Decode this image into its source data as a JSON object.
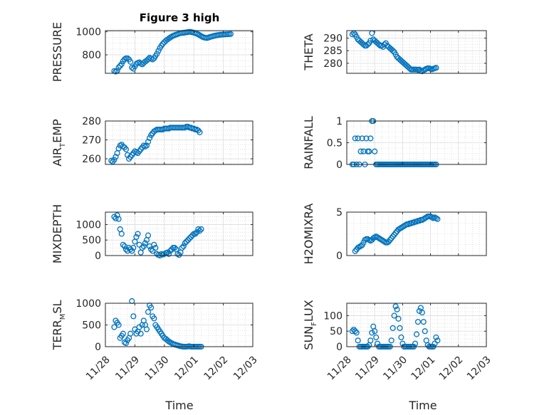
{
  "figure": {
    "title": "Figure 3 high",
    "x_axis_label": "Time",
    "x_tick_labels": [
      "11/28",
      "11/29",
      "11/30",
      "12/01",
      "12/02",
      "12/03"
    ],
    "marker_color": "#0072BD",
    "grid": true
  },
  "chart_data": [
    {
      "type": "scatter",
      "ylabel": "PRESSURE",
      "ylim": [
        640,
        1010
      ],
      "yticks": [
        800,
        1000
      ],
      "x": [
        0.3,
        0.35,
        0.4,
        0.45,
        0.5,
        0.55,
        0.6,
        0.65,
        0.7,
        0.75,
        0.8,
        0.85,
        0.9,
        0.95,
        1.0,
        1.05,
        1.1,
        1.15,
        1.2,
        1.25,
        1.3,
        1.35,
        1.4,
        1.45,
        1.5,
        1.55,
        1.6,
        1.65,
        1.7,
        1.75,
        1.8,
        1.85,
        1.9,
        1.95,
        2.0,
        2.05,
        2.1,
        2.15,
        2.2,
        2.25,
        2.3,
        2.35,
        2.4,
        2.45,
        2.5,
        2.55,
        2.6,
        2.65,
        2.7,
        2.75,
        2.8,
        2.85,
        2.9,
        2.95,
        3.0,
        3.05,
        3.1,
        3.15,
        3.2,
        3.25,
        3.3,
        3.35,
        3.4,
        3.45,
        3.5,
        3.55,
        3.6,
        3.65,
        3.7,
        3.75,
        3.8,
        3.85,
        3.9,
        3.95,
        4.0,
        4.05,
        4.1,
        4.15,
        4.2,
        4.25
      ],
      "y": [
        660,
        655,
        662,
        690,
        705,
        720,
        745,
        762,
        770,
        770,
        760,
        740,
        690,
        680,
        700,
        722,
        730,
        735,
        725,
        718,
        730,
        742,
        750,
        762,
        775,
        768,
        760,
        770,
        790,
        810,
        835,
        860,
        880,
        897,
        910,
        922,
        932,
        941,
        950,
        958,
        965,
        970,
        975,
        980,
        985,
        988,
        990,
        991,
        993,
        995,
        997,
        1000,
        998,
        995,
        992,
        988,
        983,
        978,
        970,
        962,
        955,
        950,
        948,
        946,
        950,
        955,
        958,
        962,
        965,
        968,
        970,
        972,
        974,
        975,
        976,
        977,
        978,
        979,
        980,
        981
      ]
    },
    {
      "type": "scatter",
      "ylabel": "THETA",
      "ylim": [
        276,
        293
      ],
      "yticks": [
        280,
        285,
        290
      ],
      "x": [
        0.2,
        0.25,
        0.3,
        0.35,
        0.4,
        0.45,
        0.5,
        0.55,
        0.6,
        0.65,
        0.7,
        0.75,
        0.8,
        0.85,
        0.9,
        0.95,
        1.0,
        1.05,
        1.1,
        1.15,
        1.2,
        1.25,
        1.3,
        1.35,
        1.4,
        1.45,
        1.5,
        1.55,
        1.6,
        1.65,
        1.7,
        1.75,
        1.8,
        1.85,
        1.9,
        1.95,
        2.0,
        2.05,
        2.1,
        2.15,
        2.2,
        2.25,
        2.3,
        2.35,
        2.4,
        2.45,
        2.5,
        2.55,
        2.6,
        2.65,
        2.7,
        2.75,
        2.8,
        2.85,
        2.9,
        2.95,
        3.0,
        3.05,
        3.1,
        3.15,
        3.2
      ],
      "y": [
        291.5,
        292,
        291.5,
        290.5,
        289.5,
        289,
        288.5,
        288,
        287.5,
        287,
        287,
        287.5,
        288,
        289,
        292,
        289.5,
        289,
        288.5,
        288,
        287.5,
        287,
        287,
        286.5,
        287.5,
        288,
        287,
        286.5,
        286,
        285.5,
        285,
        284.5,
        283.5,
        282.5,
        282,
        281.5,
        281,
        280.5,
        280,
        279.5,
        279,
        278.5,
        278,
        277.5,
        277.5,
        277.5,
        277.5,
        277.5,
        277.3,
        277.5,
        277,
        276.8,
        277.2,
        277.5,
        277.8,
        278,
        278,
        277.8,
        277.6,
        277.8,
        278,
        278.2
      ]
    },
    {
      "type": "scatter",
      "ylabel": "AIR_T_EMP",
      "ylim": [
        257,
        280
      ],
      "yticks": [
        260,
        270,
        280
      ],
      "x": [
        0.2,
        0.25,
        0.3,
        0.35,
        0.4,
        0.45,
        0.5,
        0.55,
        0.6,
        0.65,
        0.7,
        0.75,
        0.8,
        0.85,
        0.9,
        0.95,
        1.0,
        1.05,
        1.1,
        1.15,
        1.2,
        1.25,
        1.3,
        1.35,
        1.4,
        1.45,
        1.5,
        1.55,
        1.6,
        1.65,
        1.7,
        1.75,
        1.8,
        1.85,
        1.9,
        1.95,
        2.0,
        2.05,
        2.1,
        2.15,
        2.2,
        2.25,
        2.3,
        2.35,
        2.4,
        2.45,
        2.5,
        2.55,
        2.6,
        2.65,
        2.7,
        2.75,
        2.8,
        2.85,
        2.9,
        2.95,
        3.0,
        3.05,
        3.1,
        3.15,
        3.2
      ],
      "y": [
        259,
        258.5,
        259.5,
        261,
        263,
        265.5,
        267,
        267.5,
        266.5,
        266,
        265,
        262,
        260,
        261,
        262,
        263,
        264,
        263.5,
        263,
        264,
        265,
        266,
        267,
        266.5,
        267,
        269,
        271,
        272.5,
        273.5,
        274.5,
        275,
        275.5,
        275.5,
        275.5,
        275.5,
        275.5,
        276,
        276,
        276,
        276,
        276.5,
        276.5,
        276.5,
        276.5,
        276.5,
        276.5,
        276.5,
        276.5,
        276.5,
        276.5,
        276.5,
        277,
        277,
        276.5,
        276.5,
        276,
        276,
        275.5,
        275.5,
        275,
        274
      ]
    },
    {
      "type": "scatter",
      "ylabel": "RAINFALL",
      "ylim": [
        0,
        1
      ],
      "yticks": [
        0,
        0.5,
        1
      ],
      "x": [
        0.2,
        0.25,
        0.3,
        0.35,
        0.4,
        0.45,
        0.5,
        0.55,
        0.6,
        0.65,
        0.7,
        0.75,
        0.8,
        0.85,
        0.9,
        0.95,
        1.0,
        1.05,
        1.1,
        1.15,
        1.2,
        1.25,
        1.3,
        1.35,
        1.4,
        1.45,
        1.5,
        1.55,
        1.6,
        1.65,
        1.7,
        1.75,
        1.8,
        1.85,
        1.9,
        1.95,
        2.0,
        2.05,
        2.1,
        2.15,
        2.2,
        2.25,
        2.3,
        2.35,
        2.4,
        2.45,
        2.5,
        2.55,
        2.6,
        2.65,
        2.7,
        2.75,
        2.8,
        2.85,
        2.9,
        2.95,
        3.0,
        3.05,
        3.1,
        3.15,
        3.2
      ],
      "y": [
        0,
        0,
        0.6,
        0,
        0.6,
        0,
        0.3,
        0.6,
        0.3,
        0,
        0.6,
        0.3,
        0.3,
        0.6,
        1,
        1,
        0.3,
        0,
        0,
        0,
        0,
        0,
        0,
        0,
        0,
        0,
        0,
        0,
        0,
        0,
        0,
        0,
        0,
        0,
        0,
        0,
        0,
        0,
        0,
        0,
        0,
        0,
        0,
        0,
        0,
        0,
        0,
        0,
        0,
        0,
        0,
        0,
        0,
        0,
        0,
        0,
        0,
        0,
        0,
        0,
        0
      ]
    },
    {
      "type": "scatter",
      "ylabel": "MIXDEPTH",
      "ylim": [
        0,
        1400
      ],
      "yticks": [
        0,
        500,
        1000
      ],
      "x": [
        0.3,
        0.35,
        0.4,
        0.45,
        0.5,
        0.55,
        0.6,
        0.65,
        0.7,
        0.75,
        0.8,
        0.85,
        0.9,
        0.95,
        1.0,
        1.05,
        1.1,
        1.15,
        1.2,
        1.25,
        1.3,
        1.35,
        1.4,
        1.45,
        1.5,
        1.55,
        1.6,
        1.65,
        1.7,
        1.75,
        1.8,
        1.85,
        1.9,
        1.95,
        2.0,
        2.05,
        2.1,
        2.15,
        2.2,
        2.25,
        2.3,
        2.35,
        2.4,
        2.45,
        2.5,
        2.55,
        2.6,
        2.65,
        2.7,
        2.75,
        2.8,
        2.85,
        2.9,
        2.95,
        3.0,
        3.05,
        3.1,
        3.15,
        3.2,
        3.25
      ],
      "y": [
        1250,
        1200,
        1300,
        1180,
        850,
        700,
        350,
        300,
        200,
        150,
        250,
        200,
        150,
        250,
        450,
        600,
        700,
        350,
        100,
        250,
        300,
        400,
        500,
        650,
        300,
        200,
        150,
        350,
        250,
        50,
        20,
        0,
        50,
        30,
        50,
        80,
        100,
        50,
        150,
        200,
        250,
        250,
        200,
        50,
        20,
        100,
        250,
        300,
        400,
        450,
        500,
        550,
        600,
        650,
        700,
        700,
        750,
        850,
        800,
        850
      ]
    },
    {
      "type": "scatter",
      "ylabel": "H2OMIXRA",
      "ylim": [
        0,
        5
      ],
      "yticks": [
        0,
        5
      ],
      "x": [
        0.3,
        0.35,
        0.4,
        0.45,
        0.5,
        0.55,
        0.6,
        0.65,
        0.7,
        0.75,
        0.8,
        0.85,
        0.9,
        0.95,
        1.0,
        1.05,
        1.1,
        1.15,
        1.2,
        1.25,
        1.3,
        1.35,
        1.4,
        1.45,
        1.5,
        1.55,
        1.6,
        1.65,
        1.7,
        1.75,
        1.8,
        1.85,
        1.9,
        1.95,
        2.0,
        2.05,
        2.1,
        2.15,
        2.2,
        2.25,
        2.3,
        2.35,
        2.4,
        2.45,
        2.5,
        2.55,
        2.6,
        2.65,
        2.7,
        2.75,
        2.8,
        2.85,
        2.9,
        2.95,
        3.0,
        3.05,
        3.1,
        3.15,
        3.2,
        3.25
      ],
      "y": [
        0.5,
        0.7,
        0.9,
        1.0,
        1.1,
        1.2,
        1.5,
        1.8,
        1.9,
        1.9,
        1.8,
        1.7,
        1.8,
        2.0,
        2.1,
        2.2,
        2.1,
        2.0,
        1.9,
        1.8,
        1.7,
        1.6,
        1.5,
        1.5,
        1.6,
        1.8,
        2.0,
        2.2,
        2.4,
        2.6,
        2.8,
        3.0,
        3.1,
        3.2,
        3.3,
        3.4,
        3.5,
        3.6,
        3.6,
        3.7,
        3.7,
        3.8,
        3.8,
        3.9,
        3.9,
        4.0,
        4.0,
        4.1,
        4.1,
        4.2,
        4.3,
        4.4,
        4.5,
        4.5,
        4.5,
        4.4,
        4.3,
        4.4,
        4.3,
        4.2
      ]
    },
    {
      "type": "scatter",
      "ylabel": "TERR_M_SL",
      "ylim": [
        0,
        1000
      ],
      "yticks": [
        0,
        500,
        1000
      ],
      "x": [
        0.3,
        0.35,
        0.4,
        0.45,
        0.5,
        0.55,
        0.6,
        0.65,
        0.7,
        0.75,
        0.8,
        0.85,
        0.9,
        0.95,
        1.0,
        1.05,
        1.1,
        1.15,
        1.2,
        1.25,
        1.3,
        1.35,
        1.4,
        1.45,
        1.5,
        1.55,
        1.6,
        1.65,
        1.7,
        1.75,
        1.8,
        1.85,
        1.9,
        1.95,
        2.0,
        2.05,
        2.1,
        2.15,
        2.2,
        2.25,
        2.3,
        2.35,
        2.4,
        2.45,
        2.5,
        2.55,
        2.6,
        2.65,
        2.7,
        2.75,
        2.8,
        2.85,
        2.9,
        2.95,
        3.0,
        3.05,
        3.1,
        3.15,
        3.2,
        3.25
      ],
      "y": [
        450,
        600,
        550,
        500,
        200,
        250,
        300,
        100,
        80,
        150,
        200,
        300,
        1050,
        700,
        400,
        300,
        350,
        450,
        300,
        500,
        600,
        500,
        400,
        800,
        950,
        900,
        700,
        650,
        500,
        450,
        400,
        350,
        300,
        250,
        200,
        180,
        150,
        120,
        100,
        80,
        60,
        50,
        40,
        30,
        20,
        10,
        5,
        0,
        0,
        0,
        5,
        10,
        0,
        0,
        0,
        0,
        0,
        0,
        0,
        0
      ]
    },
    {
      "type": "scatter",
      "ylabel": "SUN_F_LUX",
      "ylim": [
        0,
        140
      ],
      "yticks": [
        0,
        50,
        100
      ],
      "x": [
        0.2,
        0.25,
        0.3,
        0.35,
        0.4,
        0.45,
        0.5,
        0.55,
        0.6,
        0.65,
        0.7,
        0.75,
        0.8,
        0.85,
        0.9,
        0.95,
        1.0,
        1.05,
        1.1,
        1.15,
        1.2,
        1.25,
        1.3,
        1.35,
        1.4,
        1.45,
        1.5,
        1.55,
        1.6,
        1.65,
        1.7,
        1.75,
        1.8,
        1.85,
        1.9,
        1.95,
        2.0,
        2.05,
        2.1,
        2.15,
        2.2,
        2.25,
        2.3,
        2.35,
        2.4,
        2.45,
        2.5,
        2.55,
        2.6,
        2.65,
        2.7,
        2.75,
        2.8,
        2.85,
        2.9,
        2.95,
        3.0,
        3.05,
        3.1,
        3.15,
        3.2,
        3.25
      ],
      "y": [
        50,
        55,
        50,
        45,
        20,
        0,
        0,
        0,
        0,
        0,
        0,
        0,
        5,
        20,
        45,
        65,
        50,
        30,
        10,
        0,
        0,
        0,
        0,
        0,
        0,
        0,
        0,
        0,
        20,
        60,
        100,
        130,
        120,
        90,
        60,
        30,
        10,
        0,
        0,
        0,
        0,
        0,
        0,
        0,
        0,
        10,
        40,
        80,
        115,
        125,
        110,
        80,
        50,
        20,
        5,
        0,
        0,
        0,
        0,
        10,
        30,
        20
      ]
    }
  ]
}
